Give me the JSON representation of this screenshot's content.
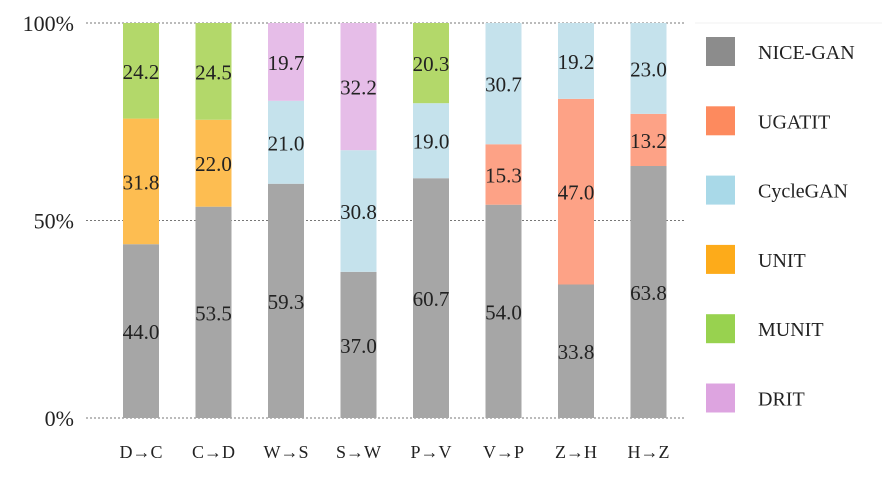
{
  "chart_data": {
    "type": "bar",
    "stacked": true,
    "title": "",
    "xlabel": "",
    "ylabel": "",
    "ylim": [
      0,
      100
    ],
    "yticks": [
      "0%",
      "50%",
      "100%"
    ],
    "grid": true,
    "legend_position": "right",
    "categories": [
      "D→C",
      "C→D",
      "W→S",
      "S→W",
      "P→V",
      "V→P",
      "Z→H",
      "H→Z"
    ],
    "series": [
      {
        "name": "NICE-GAN",
        "color": "#a6a6a6",
        "values": [
          44.0,
          53.5,
          59.3,
          37.0,
          60.7,
          54.0,
          33.8,
          63.8
        ]
      },
      {
        "name": "UGATIT",
        "color": "#fda286",
        "values": [
          null,
          null,
          null,
          null,
          null,
          15.3,
          47.0,
          13.2
        ]
      },
      {
        "name": "CycleGAN",
        "color": "#c5e2ec",
        "values": [
          null,
          null,
          21.0,
          30.8,
          19.0,
          30.7,
          19.2,
          23.0
        ]
      },
      {
        "name": "UNIT",
        "color": "#fdbd51",
        "values": [
          31.8,
          22.0,
          null,
          null,
          null,
          null,
          null,
          null
        ]
      },
      {
        "name": "MUNIT",
        "color": "#b3d86a",
        "values": [
          24.2,
          24.5,
          null,
          null,
          20.3,
          null,
          null,
          null
        ]
      },
      {
        "name": "DRIT",
        "color": "#e6bde8",
        "values": [
          null,
          null,
          19.7,
          32.2,
          null,
          null,
          null,
          null
        ]
      }
    ],
    "legend_swatch_colors": [
      "#8c8c8c",
      "#fd8a5e",
      "#a9d9e8",
      "#fdab1a",
      "#98d24f",
      "#dda4e0"
    ]
  }
}
